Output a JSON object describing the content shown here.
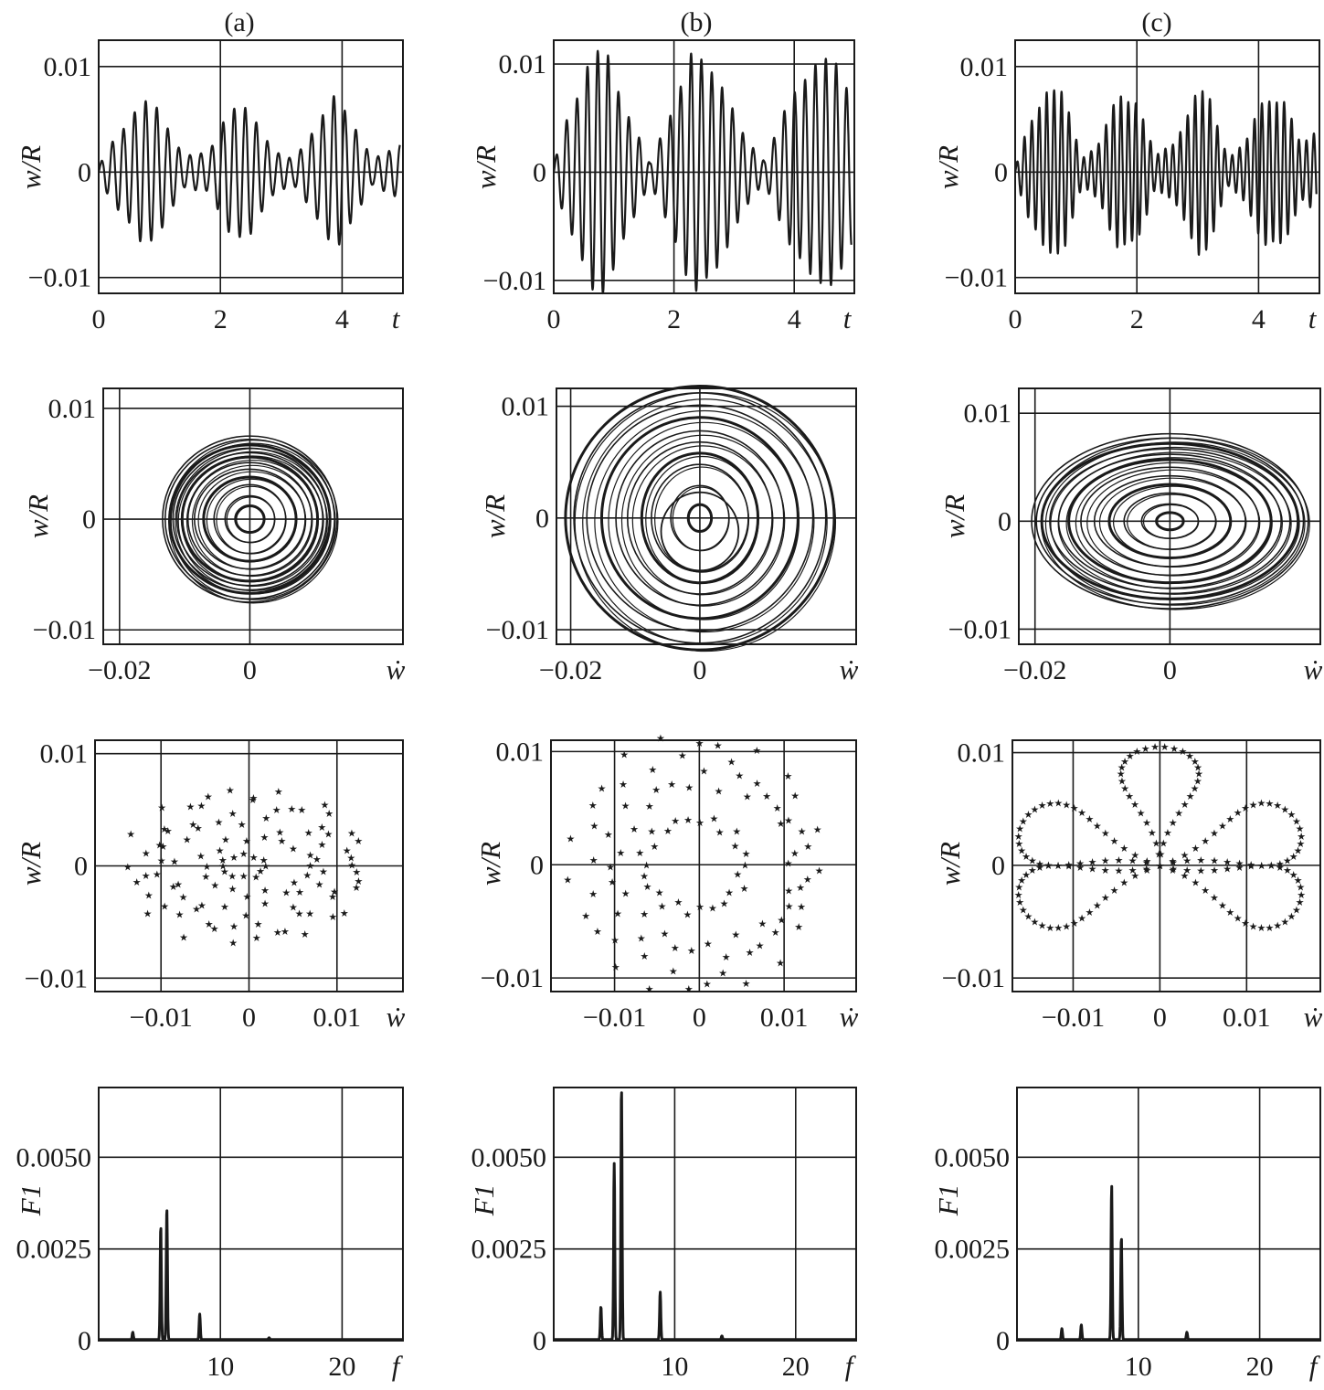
{
  "figure": {
    "column_labels": [
      "(a)",
      "(b)",
      "(c)"
    ]
  },
  "chart_data": [
    {
      "panel": "a-time",
      "type": "line",
      "ylabel": "w/R",
      "xlabel": "t",
      "xlim": [
        0,
        5
      ],
      "ylim": [
        -0.0115,
        0.0125
      ],
      "xticks": [
        0,
        2,
        4
      ],
      "xtick_labels": [
        "0",
        "2",
        "4"
      ],
      "yticks": [
        -0.01,
        0,
        0.01
      ],
      "ytick_labels": [
        "−0.01",
        "0",
        "0.01"
      ],
      "series": [
        {
          "signal": "w/R(t)",
          "carrier_hz": 5.5,
          "envelope": [
            [
              0,
              0.0005
            ],
            [
              0.3,
              0.004
            ],
            [
              0.7,
              0.0068
            ],
            [
              1.0,
              0.0065
            ],
            [
              1.4,
              0.0015
            ],
            [
              1.8,
              0.002
            ],
            [
              2.1,
              0.006
            ],
            [
              2.5,
              0.0063
            ],
            [
              2.9,
              0.002
            ],
            [
              3.2,
              0.0012
            ],
            [
              3.5,
              0.0042
            ],
            [
              3.9,
              0.0075
            ],
            [
              4.2,
              0.005
            ],
            [
              4.5,
              0.0012
            ],
            [
              4.8,
              0.0022
            ],
            [
              4.95,
              0.003
            ]
          ]
        }
      ],
      "grid": true
    },
    {
      "panel": "b-time",
      "type": "line",
      "ylabel": "w/R",
      "xlabel": "t",
      "xlim": [
        0,
        5
      ],
      "ylim": [
        -0.0112,
        0.0122
      ],
      "xticks": [
        0,
        2,
        4
      ],
      "xtick_labels": [
        "0",
        "2",
        "4"
      ],
      "yticks": [
        -0.01,
        0,
        0.01
      ],
      "ytick_labels": [
        "−0.01",
        "0",
        "0.01"
      ],
      "series": [
        {
          "signal": "w/R(t)",
          "carrier_hz": 5.8,
          "envelope": [
            [
              0,
              0.0006
            ],
            [
              0.2,
              0.005
            ],
            [
              0.6,
              0.0112
            ],
            [
              0.9,
              0.0113
            ],
            [
              1.3,
              0.005
            ],
            [
              1.6,
              0.0008
            ],
            [
              1.9,
              0.0055
            ],
            [
              2.3,
              0.0112
            ],
            [
              2.7,
              0.0105
            ],
            [
              3.1,
              0.004
            ],
            [
              3.5,
              0.0012
            ],
            [
              3.9,
              0.0065
            ],
            [
              4.3,
              0.0113
            ],
            [
              4.7,
              0.0102
            ],
            [
              4.95,
              0.008
            ]
          ]
        }
      ],
      "grid": true
    },
    {
      "panel": "c-time",
      "type": "line",
      "ylabel": "w/R",
      "xlabel": "t",
      "xlim": [
        0,
        5
      ],
      "ylim": [
        -0.0115,
        0.0125
      ],
      "xticks": [
        0,
        2,
        4
      ],
      "xtick_labels": [
        "0",
        "2",
        "4"
      ],
      "yticks": [
        -0.01,
        0,
        0.01
      ],
      "ytick_labels": [
        "−0.01",
        "0",
        "0.01"
      ],
      "series": [
        {
          "signal": "w/R(t)",
          "carrier_hz": 8.2,
          "envelope": [
            [
              0,
              0.0003
            ],
            [
              0.2,
              0.0045
            ],
            [
              0.5,
              0.0085
            ],
            [
              0.8,
              0.0075
            ],
            [
              1.1,
              0.0015
            ],
            [
              1.4,
              0.003
            ],
            [
              1.7,
              0.0078
            ],
            [
              2.0,
              0.0075
            ],
            [
              2.3,
              0.0015
            ],
            [
              2.6,
              0.003
            ],
            [
              3.0,
              0.008
            ],
            [
              3.2,
              0.0072
            ],
            [
              3.5,
              0.0015
            ],
            [
              3.8,
              0.003
            ],
            [
              4.1,
              0.0078
            ],
            [
              4.4,
              0.0075
            ],
            [
              4.7,
              0.0025
            ],
            [
              4.95,
              0.0045
            ]
          ]
        }
      ],
      "grid": true
    },
    {
      "panel": "a-phase",
      "type": "line",
      "ylabel": "w/R",
      "xlabel": "ẇ",
      "xlim": [
        -0.0225,
        0.0235
      ],
      "ylim": [
        -0.0113,
        0.0118
      ],
      "xticks": [
        -0.02,
        0
      ],
      "xtick_labels": [
        "−0.02",
        "0"
      ],
      "yticks": [
        -0.01,
        0,
        0.01
      ],
      "ytick_labels": [
        "−0.01",
        "0",
        "0.01"
      ],
      "series": [
        {
          "signal": "phase trajectory",
          "ellipses": [
            [
              0.0022,
              0.0012
            ],
            [
              0.0038,
              0.0021
            ],
            [
              0.0055,
              0.0031
            ],
            [
              0.0071,
              0.0038
            ],
            [
              0.0085,
              0.0045
            ],
            [
              0.0095,
              0.0051
            ],
            [
              0.0104,
              0.0056
            ],
            [
              0.0112,
              0.006
            ],
            [
              0.0118,
              0.0064
            ],
            [
              0.0123,
              0.0067
            ],
            [
              0.013,
              0.0072
            ],
            [
              0.0134,
              0.0075
            ]
          ]
        }
      ],
      "grid": true
    },
    {
      "panel": "b-phase",
      "type": "line",
      "ylabel": "w/R",
      "xlabel": "ẇ",
      "xlim": [
        -0.0222,
        0.0242
      ],
      "ylim": [
        -0.0113,
        0.0116
      ],
      "xticks": [
        -0.02,
        0
      ],
      "xtick_labels": [
        "−0.02",
        "0"
      ],
      "yticks": [
        -0.01,
        0,
        0.01
      ],
      "ytick_labels": [
        "−0.01",
        "0",
        "0.01"
      ],
      "series": [
        {
          "signal": "phase trajectory",
          "ellipses": [
            [
              0.0018,
              0.0012
            ],
            [
              0.0045,
              0.0029
            ],
            [
              0.0075,
              0.0048
            ],
            [
              0.009,
              0.0058
            ],
            [
              0.0112,
              0.0068
            ],
            [
              0.013,
              0.0078
            ],
            [
              0.0152,
              0.009
            ],
            [
              0.0175,
              0.0101
            ],
            [
              0.0195,
              0.0112
            ],
            [
              0.0208,
              0.0118
            ]
          ]
        }
      ],
      "grid": true
    },
    {
      "panel": "c-phase",
      "type": "line",
      "ylabel": "w/R",
      "xlabel": "ẇ",
      "xlim": [
        -0.0224,
        0.0223
      ],
      "ylim": [
        -0.0114,
        0.0123
      ],
      "xticks": [
        -0.02,
        0
      ],
      "xtick_labels": [
        "−0.02",
        "0"
      ],
      "yticks": [
        -0.01,
        0,
        0.01
      ],
      "ytick_labels": [
        "−0.01",
        "0",
        "0.01"
      ],
      "series": [
        {
          "signal": "phase trajectory",
          "ellipses": [
            [
              0.002,
              0.0008
            ],
            [
              0.0042,
              0.0016
            ],
            [
              0.0068,
              0.0026
            ],
            [
              0.009,
              0.0034
            ],
            [
              0.0112,
              0.0042
            ],
            [
              0.0132,
              0.005
            ],
            [
              0.015,
              0.0057
            ],
            [
              0.0165,
              0.0062
            ],
            [
              0.0178,
              0.0067
            ],
            [
              0.019,
              0.0072
            ],
            [
              0.0198,
              0.0077
            ],
            [
              0.0205,
              0.0081
            ]
          ]
        }
      ],
      "grid": true
    },
    {
      "panel": "a-poincare",
      "type": "scatter",
      "ylabel": "w/R",
      "xlabel": "ẇ",
      "xlim": [
        -0.0175,
        0.0175
      ],
      "ylim": [
        -0.0112,
        0.0112
      ],
      "xticks": [
        -0.01,
        0,
        0.01
      ],
      "xtick_labels": [
        "−0.01",
        "0",
        "0.01"
      ],
      "yticks": [
        -0.01,
        0,
        0.01
      ],
      "ytick_labels": [
        "−0.01",
        "0",
        "0.01"
      ],
      "marker": "★",
      "series": [
        {
          "signal": "Poincaré section",
          "rings": [
            [
              0.0025,
              0.001,
              12
            ],
            [
              0.006,
              0.0025,
              18
            ],
            [
              0.009,
              0.004,
              22
            ],
            [
              0.0115,
              0.0055,
              26
            ],
            [
              0.0125,
              0.0065,
              30
            ]
          ]
        }
      ],
      "grid": true
    },
    {
      "panel": "b-poincare",
      "type": "scatter",
      "ylabel": "w/R",
      "xlabel": "ẇ",
      "xlim": [
        -0.0175,
        0.0185
      ],
      "ylim": [
        -0.0112,
        0.011
      ],
      "xticks": [
        -0.01,
        0,
        0.01
      ],
      "xtick_labels": [
        "−0.01",
        "0",
        "0.01"
      ],
      "yticks": [
        -0.01,
        0,
        0.01
      ],
      "ytick_labels": [
        "−0.01",
        "0",
        "0.01"
      ],
      "marker": "★",
      "series": [
        {
          "signal": "Poincaré section",
          "rings": [
            [
              0.006,
              0.004,
              26
            ],
            [
              0.011,
              0.0075,
              36
            ],
            [
              0.0135,
              0.0105,
              40
            ]
          ]
        }
      ],
      "grid": true
    },
    {
      "panel": "c-poincare",
      "type": "scatter",
      "ylabel": "w/R",
      "xlabel": "ẇ",
      "xlim": [
        -0.017,
        0.0185
      ],
      "ylim": [
        -0.0112,
        0.0111
      ],
      "xticks": [
        -0.01,
        0,
        0.01
      ],
      "xtick_labels": [
        "−0.01",
        "0",
        "0.01"
      ],
      "yticks": [
        -0.01,
        0,
        0.01
      ],
      "ytick_labels": [
        "−0.01",
        "0",
        "0.01"
      ],
      "marker": "★",
      "series": [
        {
          "signal": "Poincaré section",
          "petals": 5,
          "r_max": 0.017,
          "r_min": 0.0002,
          "petal_angles_deg": [
            90,
            160,
            200,
            340,
            20
          ]
        }
      ],
      "grid": true
    },
    {
      "panel": "a-spectrum",
      "type": "line",
      "ylabel": "F1",
      "xlabel": "f",
      "xlim": [
        0,
        25
      ],
      "ylim": [
        0,
        0.0069
      ],
      "xticks": [
        10,
        20
      ],
      "xtick_labels": [
        "10",
        "20"
      ],
      "yticks": [
        0,
        0.0025,
        0.005
      ],
      "ytick_labels": [
        "0",
        "0.0025",
        "0.0050"
      ],
      "series": [
        {
          "signal": "spectrum",
          "peaks": [
            [
              2.8,
              0.0002
            ],
            [
              5.1,
              0.0031
            ],
            [
              5.6,
              0.0036
            ],
            [
              8.3,
              0.0007
            ],
            [
              14.0,
              5e-05
            ]
          ]
        }
      ],
      "grid": true
    },
    {
      "panel": "b-spectrum",
      "type": "line",
      "ylabel": "F1",
      "xlabel": "f",
      "xlim": [
        0,
        25
      ],
      "ylim": [
        0,
        0.0069
      ],
      "xticks": [
        10,
        20
      ],
      "xtick_labels": [
        "10",
        "20"
      ],
      "yticks": [
        0,
        0.0025,
        0.005
      ],
      "ytick_labels": [
        "0",
        "0.0025",
        "0.0050"
      ],
      "series": [
        {
          "signal": "spectrum",
          "peaks": [
            [
              3.9,
              0.0009
            ],
            [
              5.0,
              0.0048
            ],
            [
              5.6,
              0.0069
            ],
            [
              8.8,
              0.0013
            ],
            [
              13.9,
              0.0001
            ]
          ]
        }
      ],
      "grid": true
    },
    {
      "panel": "c-spectrum",
      "type": "line",
      "ylabel": "F1",
      "xlabel": "f",
      "xlim": [
        0,
        25
      ],
      "ylim": [
        0,
        0.0069
      ],
      "xticks": [
        10,
        20
      ],
      "xtick_labels": [
        "10",
        "20"
      ],
      "yticks": [
        0,
        0.0025,
        0.005
      ],
      "ytick_labels": [
        "0",
        "0.0025",
        "0.0050"
      ],
      "series": [
        {
          "signal": "spectrum",
          "peaks": [
            [
              3.7,
              0.0003
            ],
            [
              5.3,
              0.0004
            ],
            [
              7.8,
              0.0042
            ],
            [
              8.6,
              0.0028
            ],
            [
              14.0,
              0.0002
            ]
          ]
        }
      ],
      "grid": true
    }
  ]
}
